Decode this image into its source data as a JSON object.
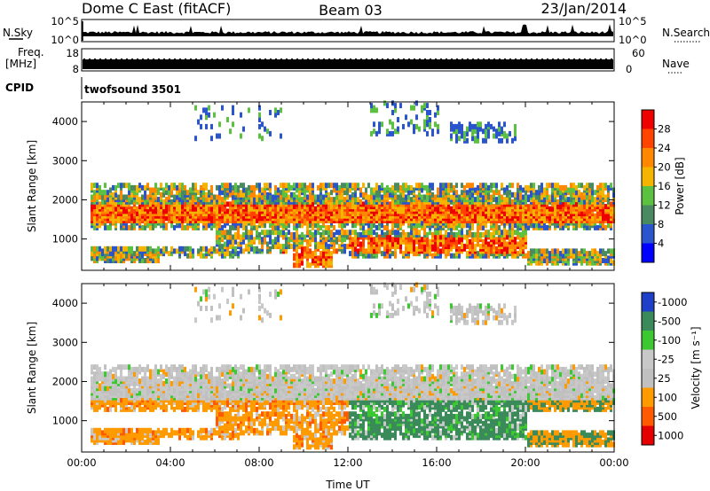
{
  "header": {
    "station": "Dome C East (fitACF)",
    "beam": "Beam 03",
    "date": "23/Jan/2014"
  },
  "strip": {
    "nsky_label": "N.Sky",
    "nsky_ticks": [
      "10^5",
      "10^0"
    ],
    "nsearch_label": "N.Search",
    "nsearch_ticks": [
      "10^5",
      "10^0"
    ],
    "freq_label_1": "Freq.",
    "freq_label_2": "[MHz]",
    "freq_ticks": [
      "18",
      "8"
    ],
    "nave_label": "Nave",
    "nave_ticks": [
      "60",
      "0"
    ],
    "cpid_label": "CPID",
    "cpid_value": "twofsound 3501"
  },
  "colors": {
    "power": [
      "#0000ff",
      "#2a55cc",
      "#4a8a60",
      "#5cc040",
      "#f5b400",
      "#ff8800",
      "#ff4400",
      "#ee0000"
    ],
    "velocity": [
      "#e40000",
      "#ff5a00",
      "#ff9a00",
      "#c0c0c0",
      "#c8c8c8",
      "#3cc830",
      "#3a8a5a",
      "#1e3fc8"
    ]
  },
  "chart_data": [
    {
      "type": "heatmap",
      "name": "power",
      "ylabel": "Slant Range [km]",
      "yticks": [
        "1000",
        "2000",
        "3000",
        "4000"
      ],
      "ylim": [
        200,
        4500
      ],
      "xlim": [
        0,
        24
      ],
      "colorbar_label": "Power [dB]",
      "colorbar_ticks": [
        "4",
        "8",
        "12",
        "16",
        "20",
        "24",
        "28"
      ],
      "clim": [
        0,
        32
      ]
    },
    {
      "type": "heatmap",
      "name": "velocity",
      "ylabel": "Slant Range [km]",
      "yticks": [
        "1000",
        "2000",
        "3000",
        "4000"
      ],
      "ylim": [
        200,
        4500
      ],
      "xlim": [
        0,
        24
      ],
      "xlabel": "Time UT",
      "xticks": [
        "00:00",
        "04:00",
        "08:00",
        "12:00",
        "16:00",
        "20:00",
        "00:00"
      ],
      "colorbar_label": "Velocity [m s⁻¹]",
      "colorbar_ticks": [
        "-1000",
        "-500",
        "-100",
        "-25",
        "25",
        "100",
        "500",
        "1000"
      ]
    }
  ]
}
